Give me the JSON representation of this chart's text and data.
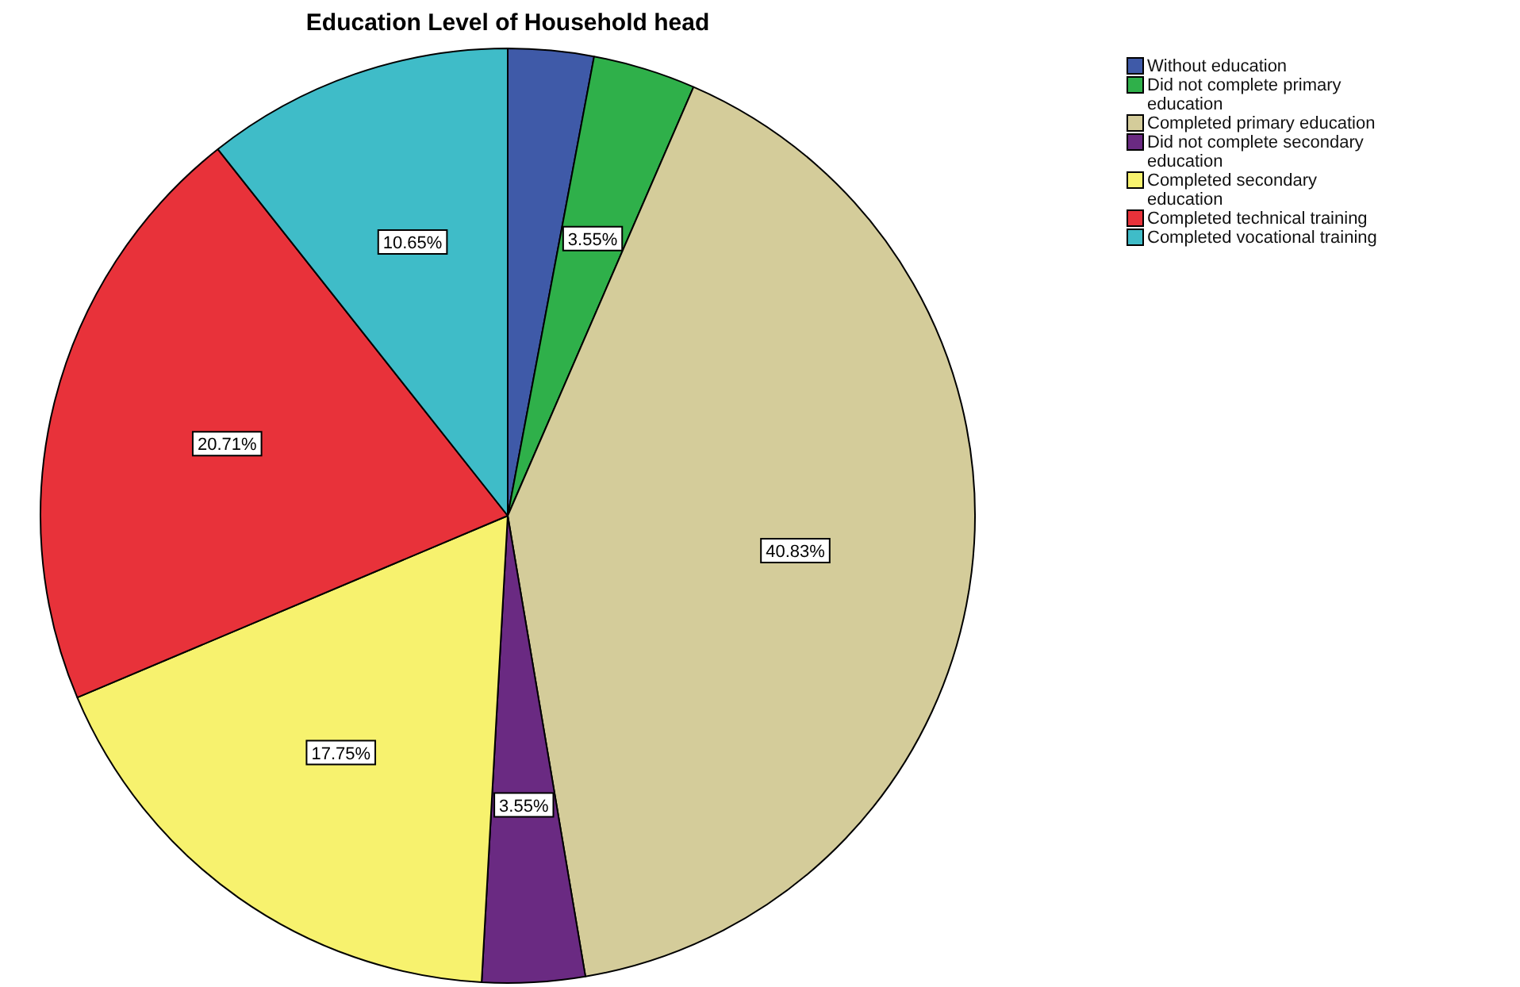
{
  "chart_data": {
    "type": "pie",
    "title": "Education Level of Household head",
    "categories": [
      "Without education",
      "Did not complete primary education",
      "Completed primary education",
      "Did not complete secondary education",
      "Completed secondary education",
      "Completed technical training",
      "Completed vocational training"
    ],
    "values": [
      2.96,
      3.55,
      40.83,
      3.55,
      17.75,
      20.71,
      10.65
    ],
    "value_labels": [
      null,
      "3.55%",
      "40.83%",
      "3.55%",
      "17.75%",
      "20.71%",
      "10.65%"
    ],
    "colors": [
      "#3f5aa8",
      "#2fb04a",
      "#d4cc9a",
      "#6a2a82",
      "#f7f26e",
      "#e8323a",
      "#3fbcc8"
    ],
    "legend": "top right"
  }
}
